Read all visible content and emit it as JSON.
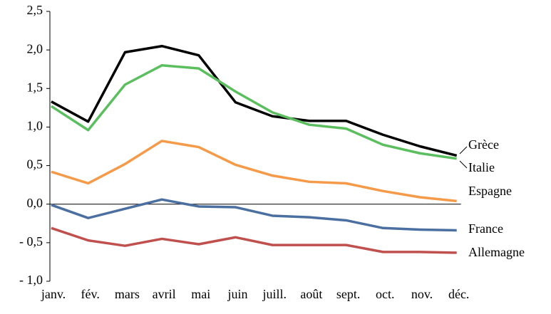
{
  "chart_data": {
    "type": "line",
    "categories": [
      "janv.",
      "fév.",
      "mars",
      "avril",
      "mai",
      "juin",
      "juill.",
      "août",
      "sept.",
      "oct.",
      "nov.",
      "déc."
    ],
    "series": [
      {
        "name": "Grèce",
        "color": "#000000",
        "values": [
          1.33,
          1.07,
          1.97,
          2.05,
          1.93,
          1.32,
          1.14,
          1.08,
          1.08,
          0.9,
          0.75,
          0.63
        ]
      },
      {
        "name": "Italie",
        "color": "#5cbf5f",
        "values": [
          1.27,
          0.96,
          1.55,
          1.8,
          1.76,
          1.46,
          1.19,
          1.03,
          0.98,
          0.77,
          0.66,
          0.59
        ]
      },
      {
        "name": "Espagne",
        "color": "#f59a48",
        "values": [
          0.42,
          0.27,
          0.52,
          0.82,
          0.74,
          0.51,
          0.37,
          0.29,
          0.27,
          0.17,
          0.09,
          0.04
        ]
      },
      {
        "name": "France",
        "color": "#4a6fa0",
        "values": [
          -0.01,
          -0.18,
          -0.06,
          0.06,
          -0.03,
          -0.04,
          -0.15,
          -0.17,
          -0.21,
          -0.31,
          -0.33,
          -0.34
        ]
      },
      {
        "name": "Allemagne",
        "color": "#c0504d",
        "values": [
          -0.31,
          -0.47,
          -0.54,
          -0.45,
          -0.52,
          -0.43,
          -0.53,
          -0.53,
          -0.53,
          -0.62,
          -0.62,
          -0.63
        ]
      }
    ],
    "ylim": [
      -1.0,
      2.5
    ],
    "yticks": [
      {
        "value": -1.0,
        "label": "- 1,0"
      },
      {
        "value": -0.5,
        "label": "- 0,5"
      },
      {
        "value": 0,
        "label": "0,0"
      },
      {
        "value": 0.5,
        "label": "0,5"
      },
      {
        "value": 1.0,
        "label": "1,0"
      },
      {
        "value": 1.5,
        "label": "1,5"
      },
      {
        "value": 2.0,
        "label": "2,0"
      },
      {
        "value": 2.5,
        "label": "2,5"
      }
    ],
    "grid": false
  }
}
